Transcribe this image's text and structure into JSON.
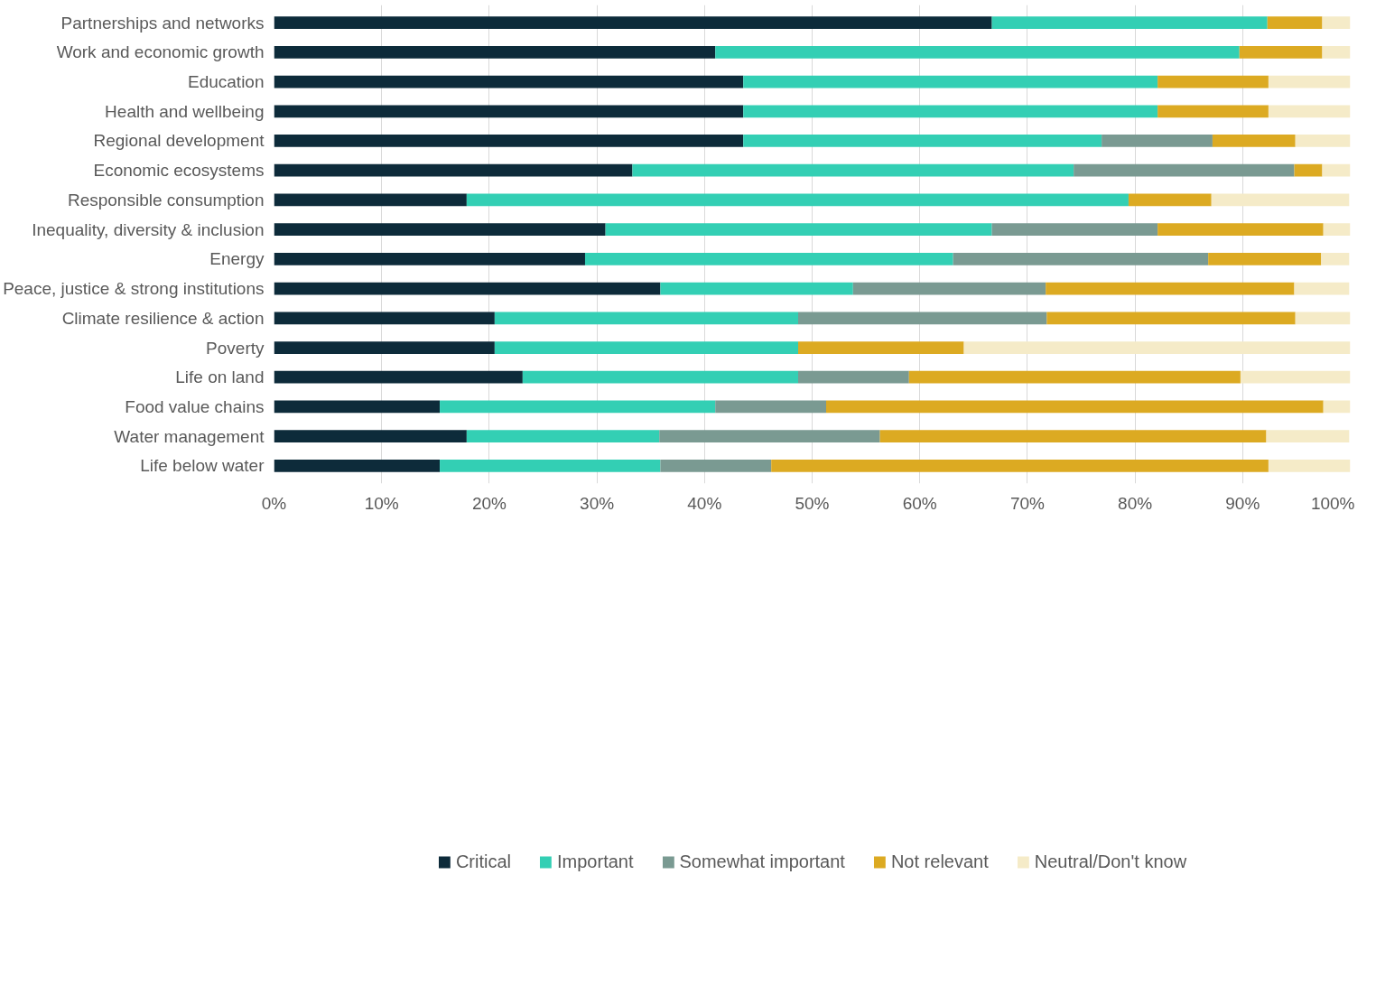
{
  "chart_data": {
    "type": "bar",
    "orientation": "horizontal",
    "stacked": true,
    "categories": [
      "Partnerships and networks",
      "Work and economic growth",
      "Education",
      "Health and wellbeing",
      "Regional development",
      "Economic ecosystems",
      "Responsible consumption",
      "Inequality, diversity & inclusion",
      "Energy",
      "Peace, justice & strong institutions",
      "Climate resilience & action",
      "Poverty",
      "Life on land",
      "Food value chains",
      "Water management",
      "Life below water"
    ],
    "series": [
      {
        "name": "Critical",
        "color": "#0d2b3a",
        "values": [
          66.7,
          41.0,
          43.6,
          43.6,
          43.6,
          33.3,
          17.9,
          30.8,
          28.9,
          35.9,
          20.5,
          20.5,
          23.1,
          15.4,
          17.9,
          15.4
        ]
      },
      {
        "name": "Important",
        "color": "#33cfb4",
        "values": [
          25.6,
          48.7,
          38.5,
          38.5,
          33.3,
          41.0,
          61.5,
          35.9,
          34.2,
          17.9,
          28.2,
          28.2,
          25.6,
          25.6,
          17.9,
          20.5
        ]
      },
      {
        "name": "Somewhat important",
        "color": "#7a9a92",
        "values": [
          0,
          0,
          0,
          0,
          10.3,
          20.5,
          0,
          15.4,
          23.7,
          17.9,
          23.1,
          0,
          10.3,
          10.3,
          20.5,
          10.3
        ]
      },
      {
        "name": "Not relevant",
        "color": "#dcaa22",
        "values": [
          5.1,
          7.7,
          10.3,
          10.3,
          7.7,
          2.6,
          7.7,
          15.4,
          10.5,
          23.1,
          23.1,
          15.4,
          30.8,
          46.2,
          35.9,
          46.2
        ]
      },
      {
        "name": "Neutral/Don't know",
        "color": "#f5ebc8",
        "values": [
          2.6,
          2.6,
          7.7,
          7.7,
          5.1,
          2.6,
          12.8,
          2.6,
          2.6,
          5.1,
          5.1,
          35.9,
          10.3,
          2.6,
          7.7,
          7.7
        ]
      }
    ],
    "xlim": [
      0,
      100
    ],
    "xticks": [
      {
        "value": 0,
        "label": "0%"
      },
      {
        "value": 10,
        "label": "10%"
      },
      {
        "value": 20,
        "label": "20%"
      },
      {
        "value": 30,
        "label": "30%"
      },
      {
        "value": 40,
        "label": "40%"
      },
      {
        "value": 50,
        "label": "50%"
      },
      {
        "value": 60,
        "label": "60%"
      },
      {
        "value": 70,
        "label": "70%"
      },
      {
        "value": 80,
        "label": "80%"
      },
      {
        "value": 90,
        "label": "90%"
      },
      {
        "value": 100,
        "label": "100%"
      }
    ],
    "grid": "x",
    "legend": "bottom"
  }
}
